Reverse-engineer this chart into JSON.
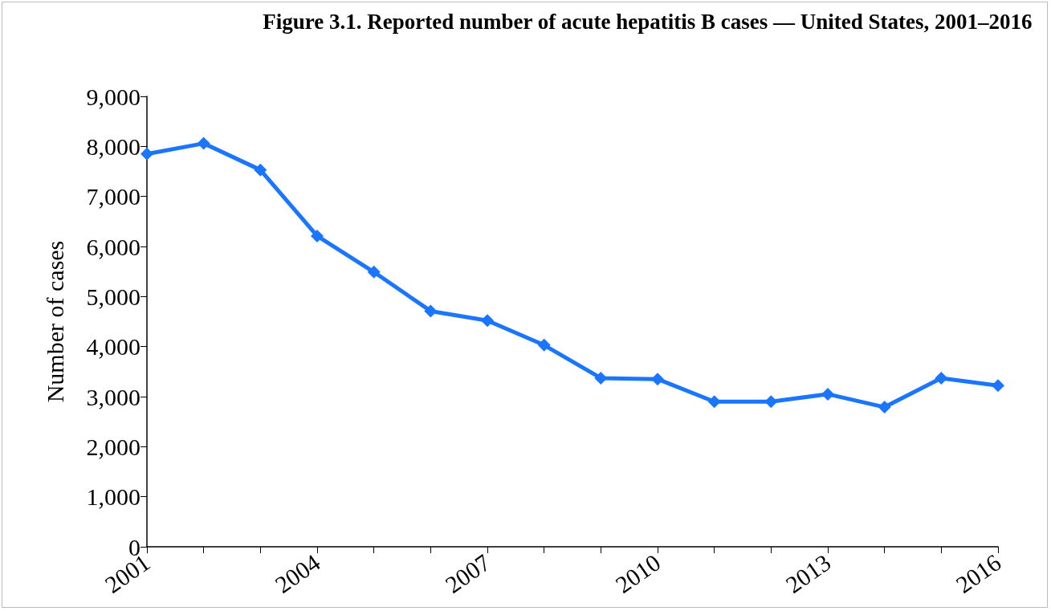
{
  "chart_data": {
    "type": "line",
    "title": "Figure 3.1. Reported number of acute hepatitis B cases — United States, 2001–2016",
    "ylabel": "Number of cases",
    "x": [
      2001,
      2002,
      2003,
      2004,
      2005,
      2006,
      2007,
      2008,
      2009,
      2010,
      2011,
      2012,
      2013,
      2014,
      2015,
      2016
    ],
    "series": [
      {
        "color": "#1a75ff",
        "values": [
          7850,
          8060,
          7530,
          6210,
          5490,
          4710,
          4520,
          4030,
          3370,
          3350,
          2900,
          2900,
          3050,
          2790,
          3370,
          3220
        ]
      }
    ],
    "xlim": [
      2001,
      2016
    ],
    "xticks": [
      2001,
      {
        "value": 2002,
        "label": null
      },
      {
        "value": 2003,
        "label": null
      },
      2004,
      {
        "value": 2005,
        "label": null
      },
      {
        "value": 2006,
        "label": null
      },
      2007,
      {
        "value": 2008,
        "label": null
      },
      {
        "value": 2009,
        "label": null
      },
      2010,
      {
        "value": 2011,
        "label": null
      },
      {
        "value": 2012,
        "label": null
      },
      2013,
      {
        "value": 2014,
        "label": null
      },
      {
        "value": 2015,
        "label": null
      },
      2016
    ],
    "ylim": [
      0,
      9000
    ],
    "yticks": [
      0,
      {
        "value": 1000,
        "label": "1,000"
      },
      {
        "value": 2000,
        "label": "2,000"
      },
      {
        "value": 3000,
        "label": "3,000"
      },
      {
        "value": 4000,
        "label": "4,000"
      },
      {
        "value": 5000,
        "label": "5,000"
      },
      {
        "value": 6000,
        "label": "6,000"
      },
      {
        "value": 7000,
        "label": "7,000"
      },
      {
        "value": 8000,
        "label": "8,000"
      },
      {
        "value": 9000,
        "label": "9,000"
      }
    ],
    "grid": false,
    "marker": "diamond",
    "line_style": "solid"
  }
}
